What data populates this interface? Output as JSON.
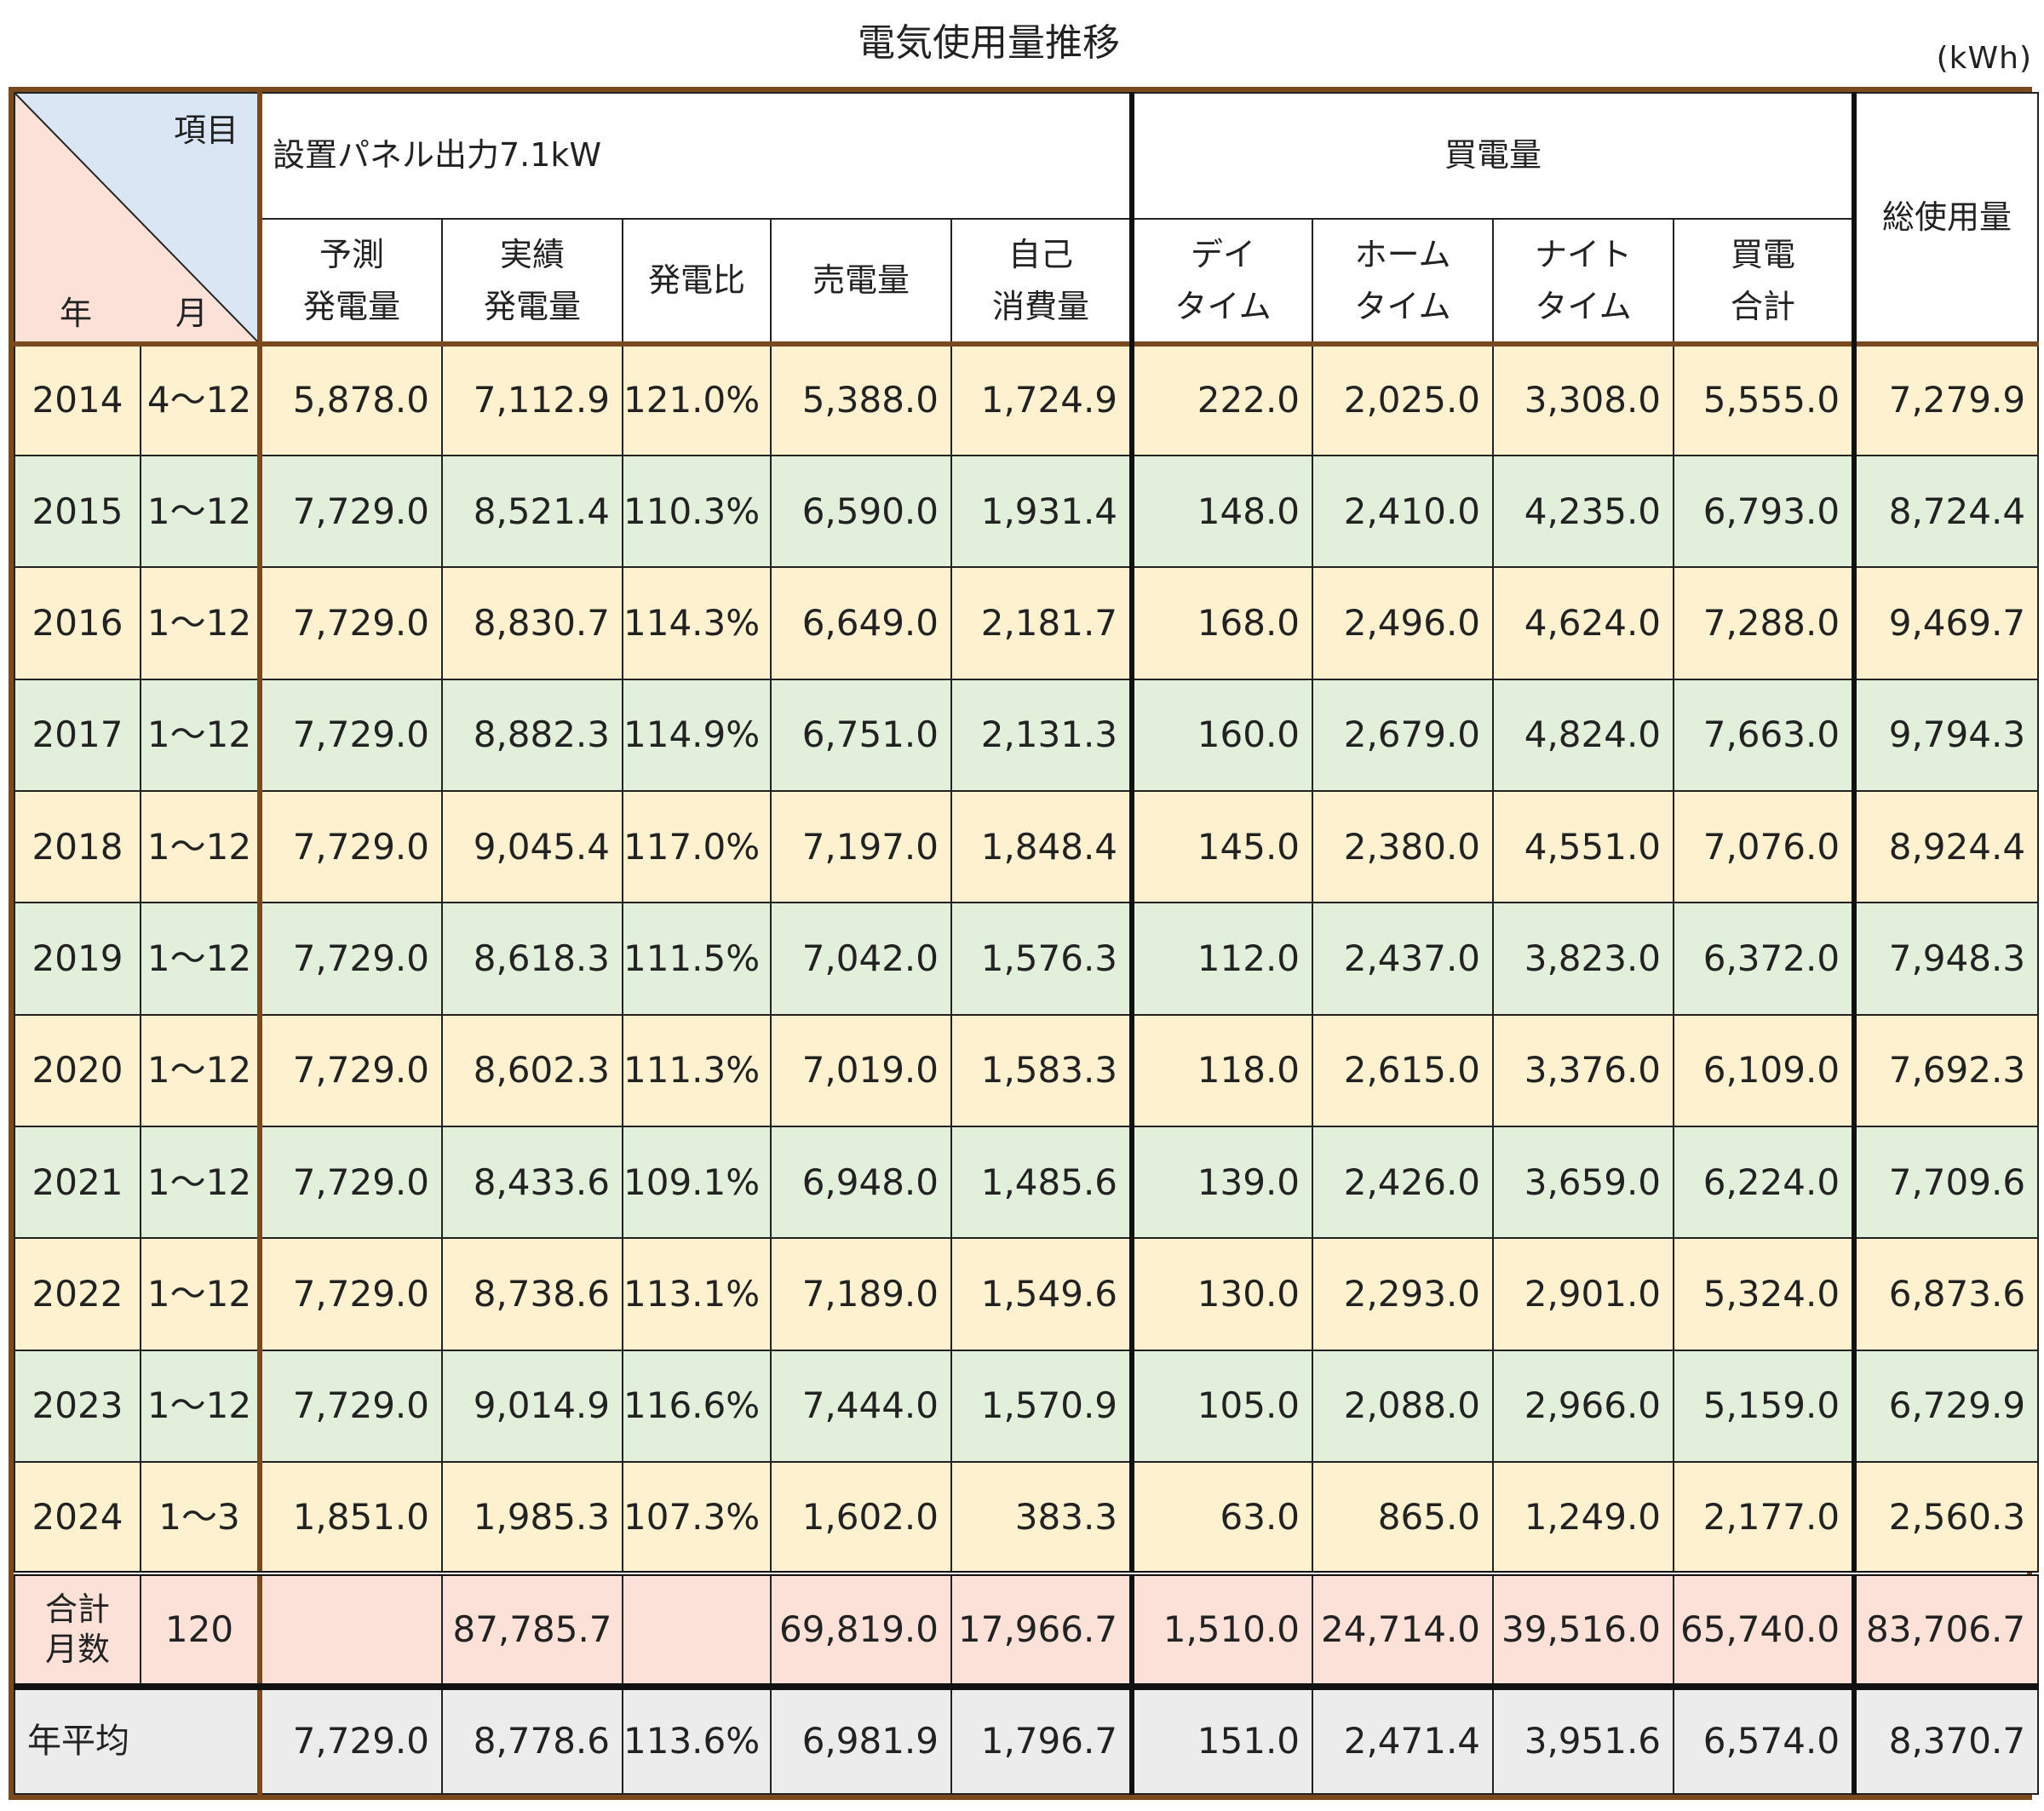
{
  "title": "電気使用量推移",
  "unit": "(kWh)",
  "header": {
    "corner_item": "項目",
    "corner_year": "年",
    "corner_month": "月",
    "group_panel": "設置パネル出力7.1kW",
    "group_buy": "買電量",
    "col_forecast_1": "予測",
    "col_forecast_2": "発電量",
    "col_actual_1": "実績",
    "col_actual_2": "発電量",
    "col_ratio": "発電比",
    "col_sold": "売電量",
    "col_self_1": "自己",
    "col_self_2": "消費量",
    "col_day_1": "デイ",
    "col_day_2": "タイム",
    "col_home_1": "ホーム",
    "col_home_2": "タイム",
    "col_night_1": "ナイト",
    "col_night_2": "タイム",
    "col_buytotal_1": "買電",
    "col_buytotal_2": "合計",
    "col_total": "総使用量"
  },
  "chart_data": {
    "type": "table",
    "title": "電気使用量推移",
    "unit": "kWh",
    "columns": [
      "年",
      "月",
      "予測発電量",
      "実績発電量",
      "発電比",
      "売電量",
      "自己消費量",
      "デイタイム",
      "ホームタイム",
      "ナイトタイム",
      "買電合計",
      "総使用量"
    ],
    "rows": [
      [
        "2014",
        "4～12",
        "5,878.0",
        "7,112.9",
        "121.0%",
        "5,388.0",
        "1,724.9",
        "222.0",
        "2,025.0",
        "3,308.0",
        "5,555.0",
        "7,279.9"
      ],
      [
        "2015",
        "1～12",
        "7,729.0",
        "8,521.4",
        "110.3%",
        "6,590.0",
        "1,931.4",
        "148.0",
        "2,410.0",
        "4,235.0",
        "6,793.0",
        "8,724.4"
      ],
      [
        "2016",
        "1～12",
        "7,729.0",
        "8,830.7",
        "114.3%",
        "6,649.0",
        "2,181.7",
        "168.0",
        "2,496.0",
        "4,624.0",
        "7,288.0",
        "9,469.7"
      ],
      [
        "2017",
        "1～12",
        "7,729.0",
        "8,882.3",
        "114.9%",
        "6,751.0",
        "2,131.3",
        "160.0",
        "2,679.0",
        "4,824.0",
        "7,663.0",
        "9,794.3"
      ],
      [
        "2018",
        "1～12",
        "7,729.0",
        "9,045.4",
        "117.0%",
        "7,197.0",
        "1,848.4",
        "145.0",
        "2,380.0",
        "4,551.0",
        "7,076.0",
        "8,924.4"
      ],
      [
        "2019",
        "1～12",
        "7,729.0",
        "8,618.3",
        "111.5%",
        "7,042.0",
        "1,576.3",
        "112.0",
        "2,437.0",
        "3,823.0",
        "6,372.0",
        "7,948.3"
      ],
      [
        "2020",
        "1～12",
        "7,729.0",
        "8,602.3",
        "111.3%",
        "7,019.0",
        "1,583.3",
        "118.0",
        "2,615.0",
        "3,376.0",
        "6,109.0",
        "7,692.3"
      ],
      [
        "2021",
        "1～12",
        "7,729.0",
        "8,433.6",
        "109.1%",
        "6,948.0",
        "1,485.6",
        "139.0",
        "2,426.0",
        "3,659.0",
        "6,224.0",
        "7,709.6"
      ],
      [
        "2022",
        "1～12",
        "7,729.0",
        "8,738.6",
        "113.1%",
        "7,189.0",
        "1,549.6",
        "130.0",
        "2,293.0",
        "2,901.0",
        "5,324.0",
        "6,873.6"
      ],
      [
        "2023",
        "1～12",
        "7,729.0",
        "9,014.9",
        "116.6%",
        "7,444.0",
        "1,570.9",
        "105.0",
        "2,088.0",
        "2,966.0",
        "5,159.0",
        "6,729.9"
      ],
      [
        "2024",
        "1～3",
        "1,851.0",
        "1,985.3",
        "107.3%",
        "1,602.0",
        "383.3",
        "63.0",
        "865.0",
        "1,249.0",
        "2,177.0",
        "2,560.3"
      ]
    ],
    "total_row": {
      "label": "合計\n月数",
      "months": "120",
      "values": [
        "",
        "87,785.7",
        "",
        "69,819.0",
        "17,966.7",
        "1,510.0",
        "24,714.0",
        "39,516.0",
        "65,740.0",
        "83,706.7"
      ]
    },
    "avg_row": {
      "label": "年平均",
      "values": [
        "7,729.0",
        "8,778.6",
        "113.6%",
        "6,981.9",
        "1,796.7",
        "151.0",
        "2,471.4",
        "3,951.6",
        "6,574.0",
        "8,370.7"
      ]
    }
  },
  "colors": {
    "row_odd": "#fdf1cf",
    "row_even": "#e2efda",
    "total_row": "#fbe1d8",
    "avg_row": "#ececec",
    "corner_blue": "#dae6f4",
    "corner_pink": "#fbe1d8",
    "frame": "#7a4a1e"
  }
}
